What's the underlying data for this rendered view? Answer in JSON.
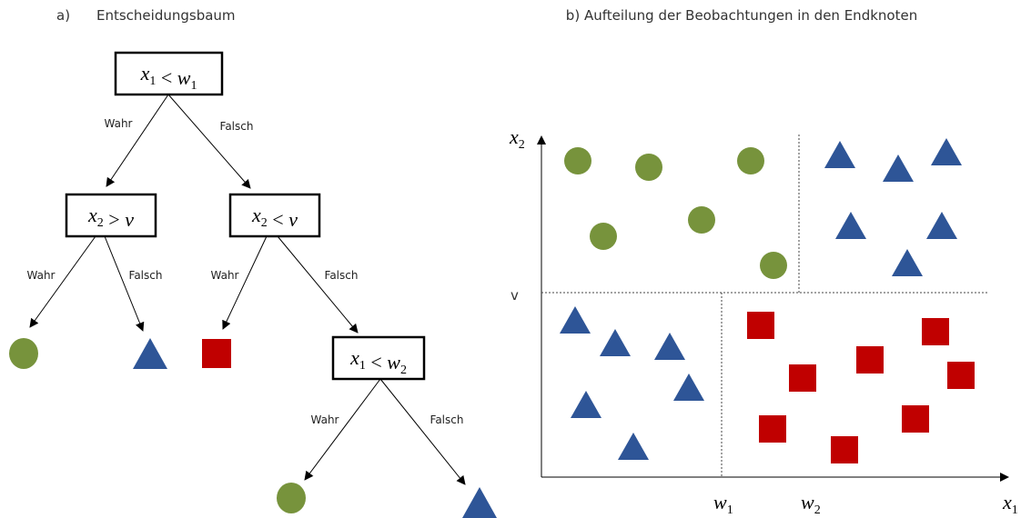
{
  "tree": {
    "label": "a)",
    "title": "Entscheidungsbaum",
    "nodes": [
      {
        "var": "x",
        "var_sub": "1",
        "op": "<",
        "rhs": "w",
        "rhs_sub": "1"
      },
      {
        "var": "x",
        "var_sub": "2",
        "op": ">",
        "rhs": "v"
      },
      {
        "var": "x",
        "var_sub": "2",
        "op": "<",
        "rhs": "v"
      },
      {
        "var": "x",
        "var_sub": "1",
        "op": "<",
        "rhs": "w",
        "rhs_sub": "2"
      }
    ],
    "edges": [
      {
        "label": "Wahr"
      },
      {
        "label": "Falsch"
      },
      {
        "label": "Wahr"
      },
      {
        "label": "Falsch"
      },
      {
        "label": "Wahr"
      },
      {
        "label": "Falsch"
      },
      {
        "label": "Wahr"
      },
      {
        "label": "Falsch"
      }
    ]
  },
  "plot": {
    "title": "b) Aufteilung der Beobachtungen in den Endknoten",
    "y_axis": {
      "var": "x",
      "sub": "2"
    },
    "x_axis": {
      "var": "x",
      "sub": "1"
    },
    "y_split": "v",
    "x_splits": [
      {
        "var": "w",
        "sub": "1"
      },
      {
        "var": "w",
        "sub": "2"
      }
    ]
  }
}
